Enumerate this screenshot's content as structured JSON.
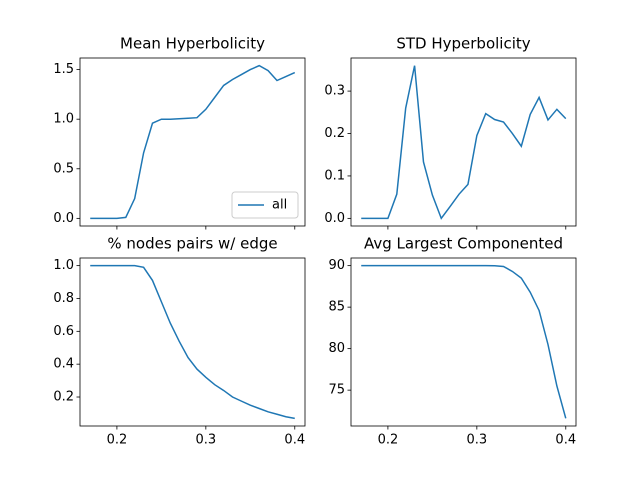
{
  "chart_data": [
    {
      "type": "line",
      "title": "Mean Hyperbolicity",
      "x": [
        0.17,
        0.18,
        0.19,
        0.2,
        0.21,
        0.22,
        0.23,
        0.24,
        0.25,
        0.26,
        0.27,
        0.28,
        0.29,
        0.3,
        0.31,
        0.32,
        0.33,
        0.34,
        0.35,
        0.36,
        0.37,
        0.38,
        0.39,
        0.4
      ],
      "series": [
        {
          "name": "all",
          "color": "#1f77b4",
          "values": [
            0,
            0,
            0,
            0,
            0.01,
            0.2,
            0.66,
            0.96,
            1.0,
            1.0,
            1.005,
            1.01,
            1.015,
            1.1,
            1.22,
            1.34,
            1.4,
            1.45,
            1.5,
            1.54,
            1.49,
            1.39,
            1.43,
            1.47
          ]
        }
      ],
      "xlim": [
        0.1585,
        0.4115
      ],
      "xticks": [
        0.2,
        0.3,
        0.4
      ],
      "ylim": [
        -0.077,
        1.617
      ],
      "yticks": [
        {
          "value": 0,
          "label": "0.0"
        },
        0.5,
        {
          "value": 1,
          "label": "1.0"
        },
        1.5
      ],
      "legend": "lower right"
    },
    {
      "type": "line",
      "title": "STD Hyperbolicity",
      "x": [
        0.17,
        0.18,
        0.19,
        0.2,
        0.21,
        0.22,
        0.23,
        0.24,
        0.25,
        0.26,
        0.27,
        0.28,
        0.29,
        0.3,
        0.31,
        0.32,
        0.33,
        0.34,
        0.35,
        0.36,
        0.37,
        0.38,
        0.39,
        0.4
      ],
      "series": [
        {
          "color": "#1f77b4",
          "values": [
            0,
            0,
            0,
            0,
            0.057,
            0.26,
            0.36,
            0.133,
            0.055,
            0,
            0.028,
            0.057,
            0.08,
            0.195,
            0.247,
            0.233,
            0.227,
            0.2,
            0.17,
            0.245,
            0.285,
            0.232,
            0.257,
            0.235
          ]
        }
      ],
      "xlim": [
        0.1585,
        0.4115
      ],
      "xticks": [
        0.2,
        0.3,
        0.4
      ],
      "ylim": [
        -0.018,
        0.378
      ],
      "yticks": [
        {
          "value": 0,
          "label": "0.0"
        },
        0.1,
        0.2,
        0.3
      ]
    },
    {
      "type": "line",
      "title": "% nodes pairs w/ edge",
      "x": [
        0.17,
        0.18,
        0.19,
        0.2,
        0.21,
        0.22,
        0.23,
        0.24,
        0.25,
        0.26,
        0.27,
        0.28,
        0.29,
        0.3,
        0.31,
        0.32,
        0.33,
        0.34,
        0.35,
        0.36,
        0.37,
        0.38,
        0.39,
        0.4
      ],
      "series": [
        {
          "color": "#1f77b4",
          "values": [
            1.0,
            1.0,
            1.0,
            1.0,
            1.0,
            1.0,
            0.99,
            0.91,
            0.78,
            0.65,
            0.54,
            0.44,
            0.37,
            0.32,
            0.275,
            0.24,
            0.2,
            0.175,
            0.15,
            0.13,
            0.11,
            0.095,
            0.08,
            0.07
          ]
        }
      ],
      "xlim": [
        0.1585,
        0.4115
      ],
      "xticks": [
        0.2,
        0.3,
        0.4
      ],
      "xticklabels": true,
      "ylim": [
        0.0235,
        1.0465
      ],
      "yticks": [
        0.2,
        0.4,
        0.6,
        0.8,
        {
          "value": 1,
          "label": "1.0"
        }
      ]
    },
    {
      "type": "line",
      "title": "Avg Largest Componented",
      "x": [
        0.17,
        0.18,
        0.19,
        0.2,
        0.21,
        0.22,
        0.23,
        0.24,
        0.25,
        0.26,
        0.27,
        0.28,
        0.29,
        0.3,
        0.31,
        0.32,
        0.33,
        0.34,
        0.35,
        0.36,
        0.37,
        0.38,
        0.39,
        0.4
      ],
      "series": [
        {
          "color": "#1f77b4",
          "values": [
            90,
            90,
            90,
            90,
            90,
            90,
            90,
            90,
            90,
            90,
            90,
            90,
            90,
            90,
            90,
            89.98,
            89.9,
            89.3,
            88.5,
            86.8,
            84.6,
            80.5,
            75.5,
            71.6
          ]
        }
      ],
      "xlim": [
        0.1585,
        0.4115
      ],
      "xticks": [
        0.2,
        0.3,
        0.4
      ],
      "xticklabels": true,
      "ylim": [
        70.68,
        90.92
      ],
      "yticks": [
        75,
        80,
        85,
        90
      ]
    }
  ]
}
